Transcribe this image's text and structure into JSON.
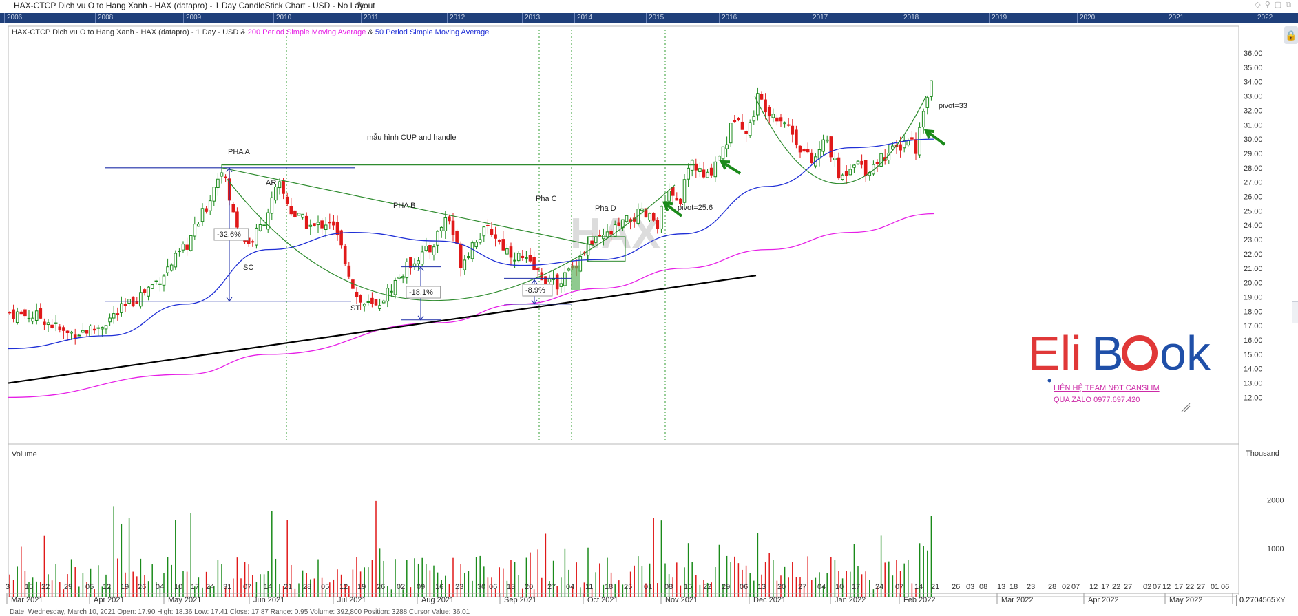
{
  "window": {
    "title": "HAX-CTCP Dich vu O to Hang Xanh - HAX (datapro) - 1 Day CandleStick Chart - USD - No Layout"
  },
  "legend": {
    "main": "HAX-CTCP Dich vu O to Hang Xanh - HAX (datapro) - 1 Day - USD & ",
    "ma200": "200 Period Simple Moving Average",
    "amp": " & ",
    "ma50": "50 Period Simple Moving Average"
  },
  "year_strip": [
    "2006",
    "2008",
    "2009",
    "2010",
    "2011",
    "2012",
    "2013",
    "2014",
    "2015",
    "2016",
    "2017",
    "2018",
    "2019",
    "2020",
    "2021",
    "2022"
  ],
  "watermark": "HAX",
  "logo": {
    "brand_left": "Eli",
    "brand_right": "Bk",
    "contact_line1": "LIÊN HỆ TEAM NĐT CANSLIM",
    "contact_line2": "QUA ZALO 0977.697.420"
  },
  "volume_panel": {
    "title": "Volume",
    "unit": "Thousand"
  },
  "cursor_value": "0.2704565",
  "cursor_unit": "XY",
  "status_bar": "Date: Wednesday, March 10, 2021 Open: 17.90 High: 18.36 Low: 17.41 Close: 17.87 Range: 0.95 Volume: 392,800 Position: 3288 Cursor Value: 36.01",
  "chart_data": {
    "type": "candlestick",
    "title": "HAX-CTCP Dich vu O to Hang Xanh - HAX (datapro) - 1 Day CandleStick Chart - USD",
    "xlabel": "",
    "ylabel": "",
    "ylim": [
      11,
      37
    ],
    "y_ticks": [
      "36.00",
      "35.00",
      "34.00",
      "33.00",
      "32.00",
      "31.00",
      "30.00",
      "29.00",
      "28.00",
      "27.00",
      "26.00",
      "25.00",
      "24.00",
      "23.00",
      "22.00",
      "21.00",
      "20.00",
      "19.00",
      "18.00",
      "17.00",
      "16.00",
      "15.00",
      "14.00",
      "13.00",
      "12.00"
    ],
    "day_ticks": [
      "3",
      "15",
      "22",
      "29",
      "05",
      "12",
      "19",
      "26",
      "04",
      "10",
      "17",
      "24",
      "31",
      "07",
      "14",
      "21",
      "28",
      "05",
      "12",
      "19",
      "26",
      "02",
      "09",
      "16",
      "23",
      "30",
      "06",
      "13",
      "20",
      "27",
      "04",
      "11",
      "18",
      "25",
      "01",
      "08",
      "15",
      "22",
      "29",
      "06",
      "13",
      "20",
      "27",
      "04",
      "10",
      "17",
      "24",
      "07",
      "14",
      "21",
      "26",
      "03",
      "08",
      "13",
      "18",
      "23",
      "28",
      "02",
      "07",
      "12",
      "17",
      "22",
      "27",
      "02",
      "07",
      "12",
      "17",
      "22",
      "27",
      "01",
      "06"
    ],
    "month_labels": [
      "Mar 2021",
      "Apr 2021",
      "May 2021",
      "Jun 2021",
      "Jul 2021",
      "Aug 2021",
      "Sep 2021",
      "Oct 2021",
      "Nov 2021",
      "Dec 2021",
      "Jan 2022",
      "Feb 2022",
      "Mar 2022",
      "Apr 2022",
      "May 2022",
      "Ju"
    ],
    "series": [
      {
        "name": "200 Period Simple Moving Average",
        "color": "#e61ee6",
        "points": [
          [
            "Mar 2021",
            12.0
          ],
          [
            "May 2021",
            13.6
          ],
          [
            "Jun 2021",
            15.0
          ],
          [
            "Aug 2021",
            17.2
          ],
          [
            "Sep 2021",
            18.5
          ],
          [
            "Oct 2021",
            19.6
          ],
          [
            "Nov 2021",
            21.0
          ],
          [
            "Dec 2021",
            22.3
          ],
          [
            "Jan 2022",
            23.5
          ],
          [
            "Feb 2022",
            24.8
          ]
        ]
      },
      {
        "name": "50 Period Simple Moving Average",
        "color": "#1f2fd6",
        "points": [
          [
            "Mar 2021",
            15.4
          ],
          [
            "Apr 2021",
            16.3
          ],
          [
            "May 2021",
            18.5
          ],
          [
            "Jun 2021",
            22.3
          ],
          [
            "Jul 2021",
            23.5
          ],
          [
            "Aug 2021",
            22.9
          ],
          [
            "Sep 2021",
            21.2
          ],
          [
            "Oct 2021",
            21.6
          ],
          [
            "Nov 2021",
            23.4
          ],
          [
            "Dec 2021",
            26.7
          ],
          [
            "Jan 2022",
            29.4
          ],
          [
            "Feb 2022",
            30.0
          ]
        ]
      }
    ],
    "candles_summary": "Daily OHLC candles from Mar 2021 to Feb 2022; price rises from ~17.9 to a May peak of ~28.2, falls to ~18 (Jul), ranges 19-25, breaks out to ~33 (Dec), cups down to ~26, then surges to ~36.6 in Feb 2022.",
    "volume_ticks": [
      "2000",
      "1000"
    ],
    "annotations": [
      {
        "text": "PHA A"
      },
      {
        "text": "AR"
      },
      {
        "text": "SC"
      },
      {
        "text": "ST"
      },
      {
        "text": "PHA B"
      },
      {
        "text": "mẫu hình CUP and handle"
      },
      {
        "text": "Pha C"
      },
      {
        "text": "Pha D"
      },
      {
        "text": "pivot=25.6"
      },
      {
        "text": "pivot=33"
      },
      {
        "text": "-32.6%"
      },
      {
        "text": "-18.1%"
      },
      {
        "text": "-8.9%"
      }
    ],
    "colors": {
      "up": "#1a8a1a",
      "down": "#e01919",
      "trendline": "#000000",
      "cup": "#2e8b2e",
      "range": "#1f2fa8"
    }
  }
}
